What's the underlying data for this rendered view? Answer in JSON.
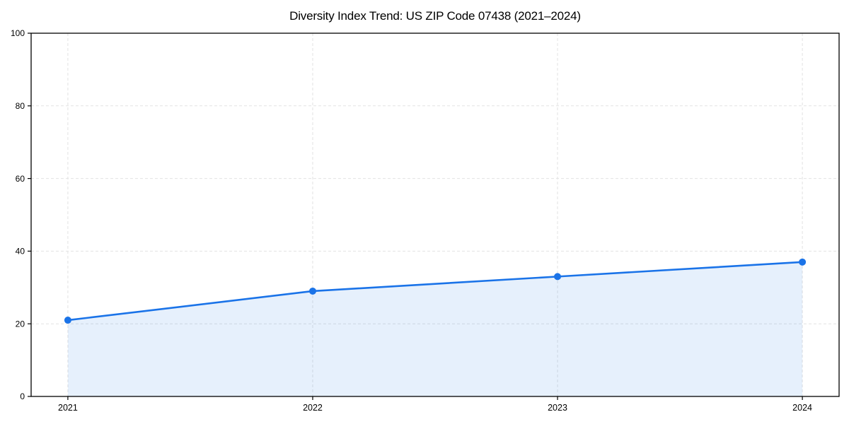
{
  "chart_data": {
    "type": "line",
    "area_fill": true,
    "markers": "circle",
    "title": "Diversity Index Trend: US ZIP Code 07438 (2021–2024)",
    "xlabel": "",
    "ylabel": "",
    "x": [
      2021,
      2022,
      2023,
      2024
    ],
    "xtick_labels": [
      "2021",
      "2022",
      "2023",
      "2024"
    ],
    "series": [
      {
        "name": "Diversity Index",
        "values": [
          21,
          29,
          33,
          37
        ]
      }
    ],
    "ylim": [
      0,
      100
    ],
    "yticks": [
      0,
      20,
      40,
      60,
      80,
      100
    ],
    "x_margin_fraction": 0.05,
    "grid": true,
    "grid_style": "dashed",
    "legend_position": "none",
    "colors": {
      "line": "#1a73e8",
      "marker": "#1a73e8",
      "fill": "#1a73e8",
      "fill_opacity": 0.11,
      "grid": "#e2e2e2",
      "axis": "#000000",
      "tick_text": "#000000",
      "background": "#ffffff"
    }
  }
}
